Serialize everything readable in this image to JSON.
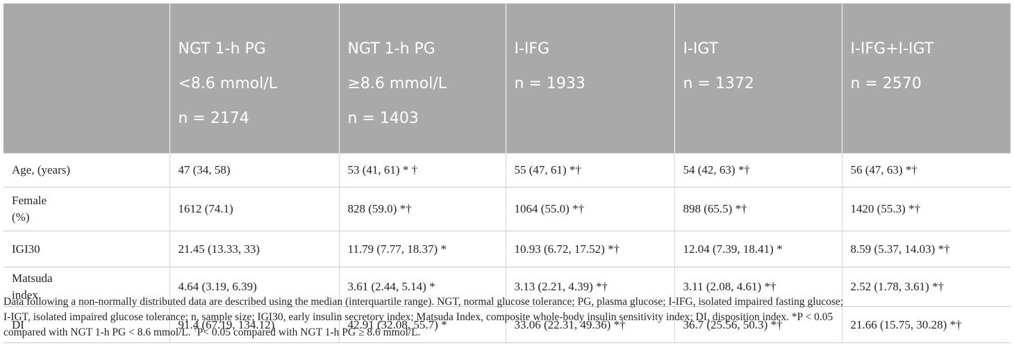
{
  "table": {
    "header": [
      [
        ""
      ],
      [
        "NGT 1-h PG",
        "<8.6 mmol/L",
        "n = 2174"
      ],
      [
        "NGT 1-h PG",
        "≥8.6 mmol/L",
        "n = 1403"
      ],
      [
        "I-IFG",
        "n = 1933"
      ],
      [
        "I-IGT",
        "n = 1372"
      ],
      [
        "I-IFG+I-IGT",
        "n = 2570"
      ]
    ],
    "rows": [
      {
        "label": [
          "Age, (years)"
        ],
        "cells": [
          "47 (34, 58)",
          "53 (41, 61) * †",
          "55 (47, 61) *†",
          "54 (42, 63) *†",
          "56 (47, 63) *†"
        ]
      },
      {
        "label": [
          "Female",
          "(%)"
        ],
        "cells": [
          "1612 (74.1)",
          "828 (59.0) *†",
          "1064 (55.0) *†",
          "898 (65.5) *†",
          "1420 (55.3) *†"
        ]
      },
      {
        "label": [
          "IGI30"
        ],
        "cells": [
          "21.45 (13.33, 33)",
          "11.79 (7.77, 18.37) *",
          "10.93 (6.72, 17.52) *†",
          "12.04 (7.39, 18.41) *",
          "8.59 (5.37, 14.03) *†"
        ]
      },
      {
        "label": [
          "Matsuda",
          "index"
        ],
        "cells": [
          "4.64 (3.19, 6.39)",
          "3.61 (2.44, 5.14) *",
          "3.13 (2.21, 4.39) *†",
          "3.11 (2.08, 4.61) *†",
          "2.52 (1.78, 3.61) *†"
        ]
      },
      {
        "label": [
          "DI"
        ],
        "cells": [
          "91.4 (67.19, 134.12)",
          "42.91 (32.08, 55.7) *",
          "33.06 (22.31, 49.36) *†",
          "36.7 (25.56, 50.3) *†",
          "21.66 (15.75, 30.28) *†"
        ]
      }
    ]
  },
  "footnote": {
    "line1": "Data following a non-normally distributed data are described using the median (interquartile range). NGT, normal glucose tolerance; PG, plasma glucose; I-IFG, isolated impaired fasting glucose;",
    "line2": "I-IGT, isolated impaired glucose tolerance; n, sample size; IGI30, early insulin secretory index; Matsuda Index, composite whole-body insulin sensitivity index; DI, disposition index. *P < 0.05",
    "line3_a": "compared with NGT 1-h PG < 8.6 mmol/L. ",
    "line3_sup": "†",
    "line3_b": "P< 0.05 compared with NGT 1-h PG ≥ 8.6 mmol/L."
  }
}
